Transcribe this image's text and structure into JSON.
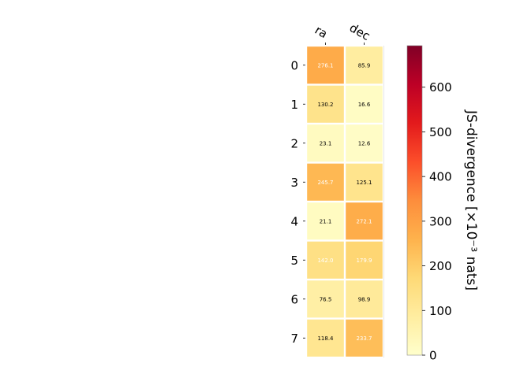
{
  "chart_data": {
    "type": "heatmap",
    "columns": [
      "ra",
      "dec"
    ],
    "rows": [
      "0",
      "1",
      "2",
      "3",
      "4",
      "5",
      "6",
      "7"
    ],
    "values": [
      [
        276.1,
        85.9
      ],
      [
        130.2,
        16.6
      ],
      [
        23.1,
        12.6
      ],
      [
        245.7,
        125.1
      ],
      [
        21.1,
        272.1
      ],
      [
        142.0,
        179.9
      ],
      [
        76.5,
        98.9
      ],
      [
        118.4,
        233.7
      ]
    ],
    "value_labels": [
      [
        "276.1",
        "85.9"
      ],
      [
        "130.2",
        "16.6"
      ],
      [
        "23.1",
        "12.6"
      ],
      [
        "245.7",
        "125.1"
      ],
      [
        "21.1",
        "272.1"
      ],
      [
        "142.0",
        "179.9"
      ],
      [
        "76.5",
        "98.9"
      ],
      [
        "118.4",
        "233.7"
      ]
    ],
    "label_colors": [
      [
        "#ffffff",
        "#000000"
      ],
      [
        "#000000",
        "#000000"
      ],
      [
        "#000000",
        "#000000"
      ],
      [
        "#ffffff",
        "#000000"
      ],
      [
        "#000000",
        "#ffffff"
      ],
      [
        "#ffffff",
        "#ffffff"
      ],
      [
        "#000000",
        "#000000"
      ],
      [
        "#000000",
        "#ffffff"
      ]
    ],
    "colorbar": {
      "label": "JS-divergence [×10⁻³ nats]",
      "min": 0,
      "max": 693,
      "ticks": [
        0,
        100,
        200,
        300,
        400,
        500,
        600
      ],
      "colormap": "YlOrRd"
    },
    "grid": false
  }
}
